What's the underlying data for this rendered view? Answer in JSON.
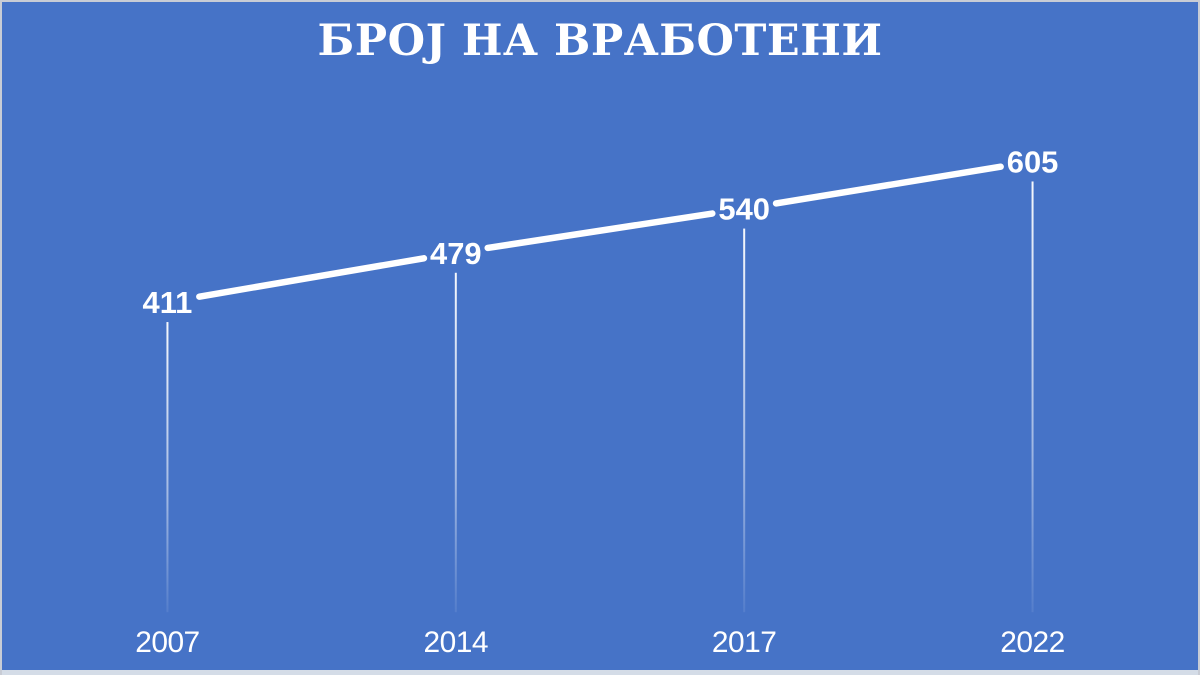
{
  "chart_data": {
    "type": "line",
    "title": "БРОЈ НА ВРАБОТЕНИ",
    "categories": [
      "2007",
      "2014",
      "2017",
      "2022"
    ],
    "values": [
      411,
      479,
      540,
      605
    ],
    "xlabel": "",
    "ylabel": "",
    "legend": "none",
    "grid": false,
    "axis_lines": "none",
    "data_labels_shown": true,
    "ylim": [
      411,
      605
    ],
    "colors": {
      "background": "#4673c7",
      "line": "#ffffff",
      "label_text": "#ffffff",
      "tick_text": "#ffffff",
      "drop_line": "#ffffff",
      "frame_border": "#c8ccd5",
      "bottom_strip": "#d4dce7"
    }
  }
}
